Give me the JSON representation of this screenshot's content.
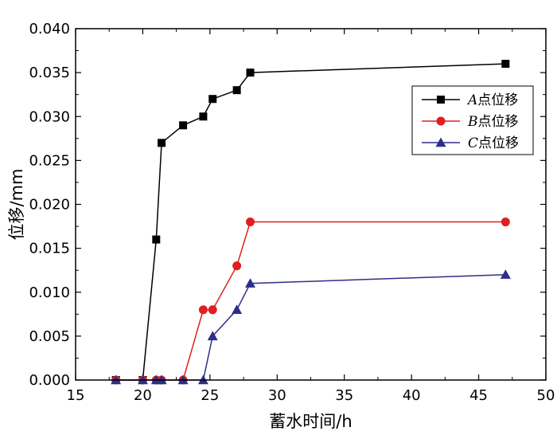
{
  "chart_data": {
    "type": "line",
    "xlabel": "蓄水时间/h",
    "ylabel": "位移/mm",
    "xlim": [
      15,
      50
    ],
    "ylim": [
      0,
      0.04
    ],
    "xticks": [
      "15",
      "20",
      "25",
      "30",
      "35",
      "40",
      "45",
      "50"
    ],
    "yticks": [
      "0.000",
      "0.005",
      "0.010",
      "0.015",
      "0.020",
      "0.025",
      "0.030",
      "0.035",
      "0.040"
    ],
    "grid": false,
    "legend_position": "top-right",
    "series": [
      {
        "name": "A点位移",
        "name_italic": "A",
        "name_rest": "点位移",
        "color": "#000000",
        "marker": "square",
        "x": [
          18,
          20,
          21,
          21.4,
          23,
          24.5,
          25.2,
          27,
          28,
          47
        ],
        "y": [
          0,
          0,
          0.016,
          0.027,
          0.029,
          0.03,
          0.032,
          0.033,
          0.035,
          0.036
        ]
      },
      {
        "name": "B点位移",
        "name_italic": "B",
        "name_rest": "点位移",
        "color": "#e02020",
        "marker": "circle",
        "x": [
          18,
          20,
          21,
          21.4,
          23,
          24.5,
          25.2,
          27,
          28,
          47
        ],
        "y": [
          0,
          0,
          0,
          0,
          0,
          0.008,
          0.008,
          0.013,
          0.018,
          0.018
        ]
      },
      {
        "name": "C点位移",
        "name_italic": "C",
        "name_rest": "点位移",
        "color": "#2e2e8a",
        "marker": "triangle",
        "x": [
          18,
          20,
          21,
          21.4,
          23,
          24.5,
          25.2,
          27,
          28,
          47
        ],
        "y": [
          0,
          0,
          0,
          0,
          0,
          0,
          0.005,
          0.008,
          0.011,
          0.012
        ]
      }
    ]
  }
}
